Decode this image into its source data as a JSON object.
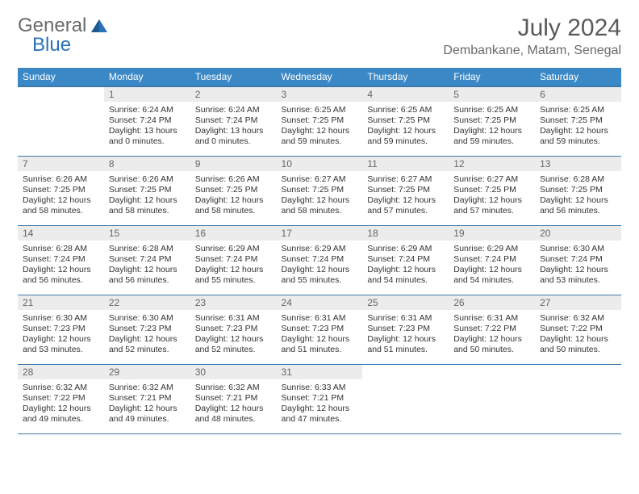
{
  "brand": {
    "part1": "General",
    "part2": "Blue"
  },
  "title": "July 2024",
  "location": "Dembankane, Matam, Senegal",
  "colors": {
    "header_bg": "#3b88c6",
    "header_border": "#3b78ad",
    "daynum_bg": "#ececec",
    "text": "#333333",
    "muted": "#6a6a6a"
  },
  "typography": {
    "title_fontsize": 30,
    "location_fontsize": 16,
    "weekday_fontsize": 12,
    "body_fontsize": 10.5
  },
  "weekdays": [
    "Sunday",
    "Monday",
    "Tuesday",
    "Wednesday",
    "Thursday",
    "Friday",
    "Saturday"
  ],
  "layout": {
    "first_day_column": 1,
    "rows": 5,
    "cols": 7
  },
  "days": [
    {
      "n": 1,
      "sunrise": "6:24 AM",
      "sunset": "7:24 PM",
      "daylight": "13 hours and 0 minutes."
    },
    {
      "n": 2,
      "sunrise": "6:24 AM",
      "sunset": "7:24 PM",
      "daylight": "13 hours and 0 minutes."
    },
    {
      "n": 3,
      "sunrise": "6:25 AM",
      "sunset": "7:25 PM",
      "daylight": "12 hours and 59 minutes."
    },
    {
      "n": 4,
      "sunrise": "6:25 AM",
      "sunset": "7:25 PM",
      "daylight": "12 hours and 59 minutes."
    },
    {
      "n": 5,
      "sunrise": "6:25 AM",
      "sunset": "7:25 PM",
      "daylight": "12 hours and 59 minutes."
    },
    {
      "n": 6,
      "sunrise": "6:25 AM",
      "sunset": "7:25 PM",
      "daylight": "12 hours and 59 minutes."
    },
    {
      "n": 7,
      "sunrise": "6:26 AM",
      "sunset": "7:25 PM",
      "daylight": "12 hours and 58 minutes."
    },
    {
      "n": 8,
      "sunrise": "6:26 AM",
      "sunset": "7:25 PM",
      "daylight": "12 hours and 58 minutes."
    },
    {
      "n": 9,
      "sunrise": "6:26 AM",
      "sunset": "7:25 PM",
      "daylight": "12 hours and 58 minutes."
    },
    {
      "n": 10,
      "sunrise": "6:27 AM",
      "sunset": "7:25 PM",
      "daylight": "12 hours and 58 minutes."
    },
    {
      "n": 11,
      "sunrise": "6:27 AM",
      "sunset": "7:25 PM",
      "daylight": "12 hours and 57 minutes."
    },
    {
      "n": 12,
      "sunrise": "6:27 AM",
      "sunset": "7:25 PM",
      "daylight": "12 hours and 57 minutes."
    },
    {
      "n": 13,
      "sunrise": "6:28 AM",
      "sunset": "7:25 PM",
      "daylight": "12 hours and 56 minutes."
    },
    {
      "n": 14,
      "sunrise": "6:28 AM",
      "sunset": "7:24 PM",
      "daylight": "12 hours and 56 minutes."
    },
    {
      "n": 15,
      "sunrise": "6:28 AM",
      "sunset": "7:24 PM",
      "daylight": "12 hours and 56 minutes."
    },
    {
      "n": 16,
      "sunrise": "6:29 AM",
      "sunset": "7:24 PM",
      "daylight": "12 hours and 55 minutes."
    },
    {
      "n": 17,
      "sunrise": "6:29 AM",
      "sunset": "7:24 PM",
      "daylight": "12 hours and 55 minutes."
    },
    {
      "n": 18,
      "sunrise": "6:29 AM",
      "sunset": "7:24 PM",
      "daylight": "12 hours and 54 minutes."
    },
    {
      "n": 19,
      "sunrise": "6:29 AM",
      "sunset": "7:24 PM",
      "daylight": "12 hours and 54 minutes."
    },
    {
      "n": 20,
      "sunrise": "6:30 AM",
      "sunset": "7:24 PM",
      "daylight": "12 hours and 53 minutes."
    },
    {
      "n": 21,
      "sunrise": "6:30 AM",
      "sunset": "7:23 PM",
      "daylight": "12 hours and 53 minutes."
    },
    {
      "n": 22,
      "sunrise": "6:30 AM",
      "sunset": "7:23 PM",
      "daylight": "12 hours and 52 minutes."
    },
    {
      "n": 23,
      "sunrise": "6:31 AM",
      "sunset": "7:23 PM",
      "daylight": "12 hours and 52 minutes."
    },
    {
      "n": 24,
      "sunrise": "6:31 AM",
      "sunset": "7:23 PM",
      "daylight": "12 hours and 51 minutes."
    },
    {
      "n": 25,
      "sunrise": "6:31 AM",
      "sunset": "7:23 PM",
      "daylight": "12 hours and 51 minutes."
    },
    {
      "n": 26,
      "sunrise": "6:31 AM",
      "sunset": "7:22 PM",
      "daylight": "12 hours and 50 minutes."
    },
    {
      "n": 27,
      "sunrise": "6:32 AM",
      "sunset": "7:22 PM",
      "daylight": "12 hours and 50 minutes."
    },
    {
      "n": 28,
      "sunrise": "6:32 AM",
      "sunset": "7:22 PM",
      "daylight": "12 hours and 49 minutes."
    },
    {
      "n": 29,
      "sunrise": "6:32 AM",
      "sunset": "7:21 PM",
      "daylight": "12 hours and 49 minutes."
    },
    {
      "n": 30,
      "sunrise": "6:32 AM",
      "sunset": "7:21 PM",
      "daylight": "12 hours and 48 minutes."
    },
    {
      "n": 31,
      "sunrise": "6:33 AM",
      "sunset": "7:21 PM",
      "daylight": "12 hours and 47 minutes."
    }
  ],
  "labels": {
    "sunrise": "Sunrise:",
    "sunset": "Sunset:",
    "daylight": "Daylight:"
  }
}
